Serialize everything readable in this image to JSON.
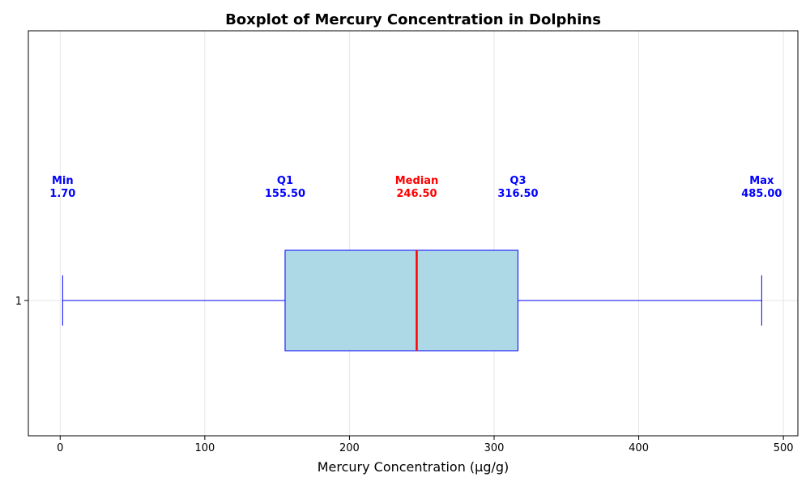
{
  "chart_data": {
    "type": "boxplot",
    "title": "Boxplot of Mercury Concentration in Dolphins",
    "xlabel": "Mercury Concentration (µg/g)",
    "ylabel": "",
    "xlim": [
      -22,
      510
    ],
    "xticks": [
      0,
      100,
      200,
      300,
      400,
      500
    ],
    "yticks": [
      "1"
    ],
    "grid": true,
    "box": {
      "category": "1",
      "min": 1.7,
      "q1": 155.5,
      "median": 246.5,
      "q3": 316.5,
      "max": 485.0
    },
    "annotations": [
      {
        "key": "min",
        "label": "Min",
        "text": "1.70"
      },
      {
        "key": "q1",
        "label": "Q1",
        "text": "155.50"
      },
      {
        "key": "median",
        "label": "Median",
        "text": "246.50"
      },
      {
        "key": "q3",
        "label": "Q3",
        "text": "316.50"
      },
      {
        "key": "max",
        "label": "Max",
        "text": "485.00"
      }
    ],
    "colors": {
      "box_fill": "#add8e6",
      "box_edge": "#0000ff",
      "median": "#ff0000",
      "annotation": "#0000ff",
      "median_annotation": "#ff0000",
      "grid": "#e6e6e6"
    }
  }
}
